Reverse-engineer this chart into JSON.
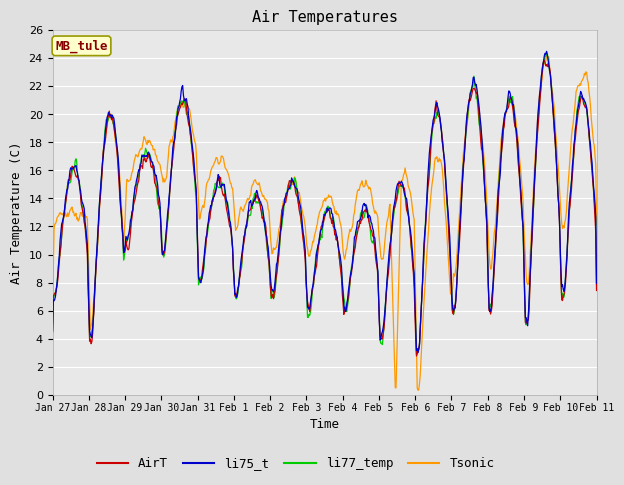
{
  "title": "Air Temperatures",
  "xlabel": "Time",
  "ylabel": "Air Temperature (C)",
  "ylim": [
    0,
    26
  ],
  "yticks": [
    0,
    2,
    4,
    6,
    8,
    10,
    12,
    14,
    16,
    18,
    20,
    22,
    24,
    26
  ],
  "xtick_labels": [
    "Jan 27",
    "Jan 28",
    "Jan 29",
    "Jan 30",
    "Jan 31",
    "Feb 1",
    "Feb 2",
    "Feb 3",
    "Feb 4",
    "Feb 5",
    "Feb 6",
    "Feb 7",
    "Feb 8",
    "Feb 9",
    "Feb 10",
    "Feb 11"
  ],
  "colors": {
    "AirT": "#cc0000",
    "li75_t": "#0000cc",
    "li77_temp": "#00cc00",
    "Tsonic": "#ff9900"
  },
  "fig_bg": "#e0e0e0",
  "plot_bg": "#e8e8e8",
  "grid_color": "#ffffff",
  "annotation_text": "MB_tule",
  "annotation_bg": "#ffffcc",
  "annotation_fg": "#880000",
  "annotation_edge": "#999900",
  "font_family": "monospace",
  "title_fontsize": 11,
  "label_fontsize": 9,
  "tick_fontsize": 8,
  "xtick_fontsize": 7,
  "legend_fontsize": 9
}
